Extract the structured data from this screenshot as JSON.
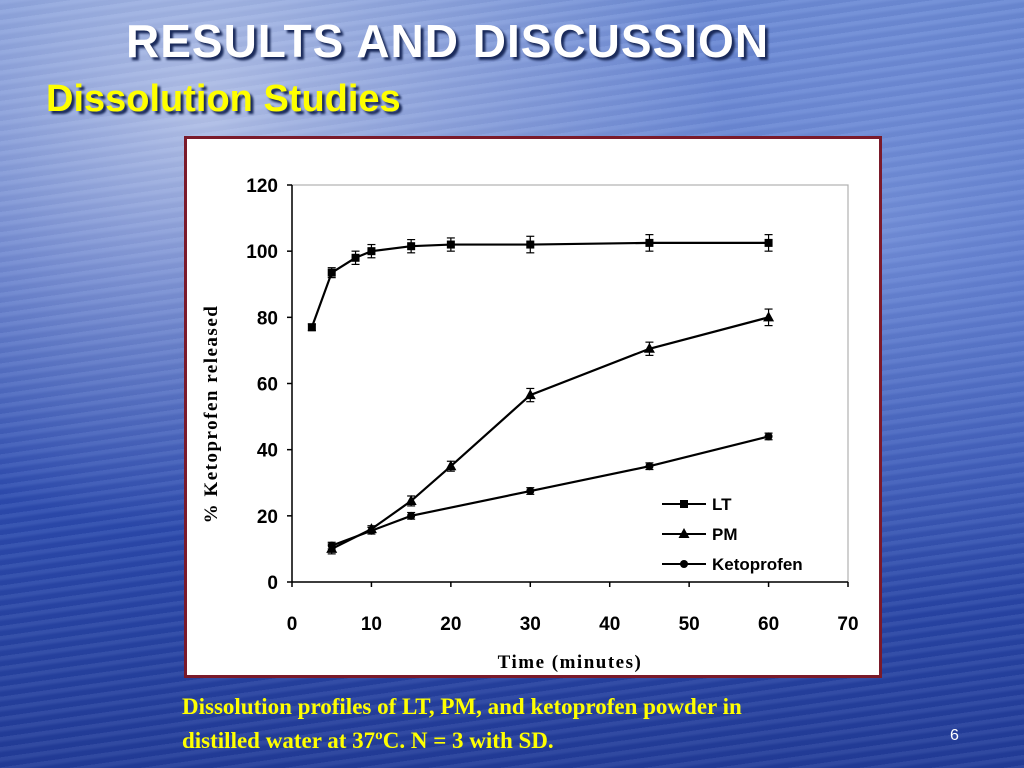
{
  "slide": {
    "title": "RESULTS AND DISCUSSION",
    "subtitle": "Dissolution Studies",
    "caption_line1": "Dissolution profiles of LT, PM, and ketoprofen powder in",
    "caption_line2": "distilled water at 37ºC. N = 3 with SD.",
    "page_number": "6"
  },
  "colors": {
    "title": "#ffffff",
    "subtitle": "#ffff00",
    "caption": "#ffff00",
    "frame_border": "#7a1a2a"
  },
  "chart_data": {
    "type": "line",
    "xlabel": "Time (minutes)",
    "ylabel": "% Ketoprofen released",
    "xlim": [
      0,
      70
    ],
    "ylim": [
      0,
      120
    ],
    "xticks": [
      0,
      10,
      20,
      30,
      40,
      50,
      60,
      70
    ],
    "yticks": [
      0,
      20,
      40,
      60,
      80,
      100,
      120
    ],
    "legend_position": "bottom-right",
    "series": [
      {
        "name": "LT",
        "marker": "square",
        "x": [
          2.5,
          5,
          8,
          10,
          15,
          20,
          30,
          45,
          60
        ],
        "y": [
          77,
          93.5,
          98,
          100,
          101.5,
          102,
          102,
          102.5,
          102.5
        ],
        "err": [
          1,
          1.5,
          2,
          2,
          2,
          2,
          2.5,
          2.5,
          2.5
        ]
      },
      {
        "name": "PM",
        "marker": "triangle",
        "x": [
          5,
          10,
          15,
          20,
          30,
          45,
          60
        ],
        "y": [
          10,
          16,
          24.5,
          35,
          56.5,
          70.5,
          80
        ],
        "err": [
          1.5,
          1,
          1.5,
          1.5,
          2,
          2,
          2.5
        ]
      },
      {
        "name": "Ketoprofen",
        "marker": "circle",
        "x": [
          5,
          10,
          15,
          30,
          45,
          60
        ],
        "y": [
          11,
          15.5,
          20,
          27.5,
          35,
          44
        ],
        "err": [
          1,
          1,
          1,
          1,
          1,
          1
        ]
      }
    ]
  }
}
